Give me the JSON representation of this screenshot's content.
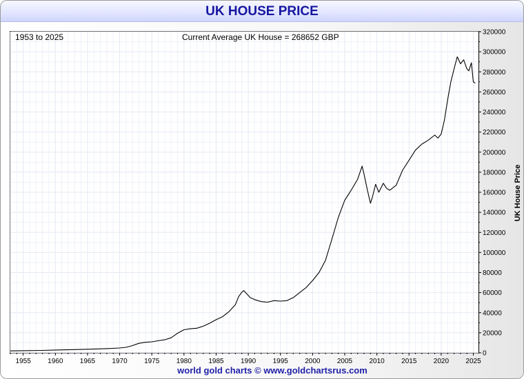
{
  "title": "UK HOUSE PRICE",
  "date_range_label": "1953 to 2025",
  "current_label": "Current Average UK House = 268652 GBP",
  "footer": "world gold charts © www.goldchartsrus.com",
  "chart_data": {
    "type": "line",
    "title": "UK HOUSE PRICE",
    "ylabel": "UK House Price",
    "xlabel": "",
    "xlim": [
      1953,
      2025.8
    ],
    "ylim": [
      0,
      320000
    ],
    "grid": true,
    "y_axis_side": "right",
    "xticks": [
      1955,
      1960,
      1965,
      1970,
      1975,
      1980,
      1985,
      1990,
      1995,
      2000,
      2005,
      2010,
      2015,
      2020,
      2025
    ],
    "yticks": [
      0,
      20000,
      40000,
      60000,
      80000,
      100000,
      120000,
      140000,
      160000,
      180000,
      200000,
      220000,
      240000,
      260000,
      280000,
      300000,
      320000
    ],
    "series": [
      {
        "color": "#000000",
        "x": [
          1953,
          1955,
          1958,
          1960,
          1963,
          1965,
          1968,
          1970,
          1971,
          1972,
          1973,
          1974,
          1975,
          1976,
          1977,
          1978,
          1979,
          1980,
          1981,
          1982,
          1983,
          1984,
          1985,
          1986,
          1987,
          1988,
          1988.5,
          1989,
          1989.3,
          1989.8,
          1990.3,
          1991,
          1992,
          1993,
          1994,
          1995,
          1996,
          1997,
          1998,
          1999,
          2000,
          2001,
          2002,
          2003,
          2004,
          2005,
          2006,
          2007,
          2007.7,
          2008,
          2008.5,
          2009,
          2009.3,
          2009.8,
          2010.3,
          2011,
          2011.5,
          2012,
          2013,
          2014,
          2015,
          2016,
          2017,
          2018,
          2019,
          2019.5,
          2020,
          2020.5,
          2021,
          2021.5,
          2022,
          2022.5,
          2023,
          2023.5,
          2024,
          2024.3,
          2024.7,
          2025,
          2025.3
        ],
        "values": [
          1900,
          2100,
          2400,
          2800,
          3200,
          3600,
          4200,
          4800,
          5500,
          7200,
          9500,
          10500,
          11000,
          12000,
          13000,
          15000,
          19500,
          23000,
          24000,
          24500,
          26500,
          29500,
          33000,
          36000,
          41000,
          48000,
          56000,
          60500,
          62000,
          58500,
          55000,
          53000,
          51000,
          50500,
          52000,
          51500,
          52000,
          55000,
          60000,
          65000,
          72000,
          80000,
          92000,
          113000,
          135000,
          152000,
          162000,
          173000,
          186000,
          178000,
          163000,
          149000,
          155000,
          168000,
          160000,
          169000,
          164000,
          162000,
          167000,
          182000,
          192000,
          202000,
          208000,
          212000,
          217000,
          214000,
          218000,
          232000,
          252000,
          270000,
          283000,
          295000,
          288000,
          292000,
          283000,
          281000,
          289000,
          270000,
          268652
        ]
      }
    ]
  }
}
